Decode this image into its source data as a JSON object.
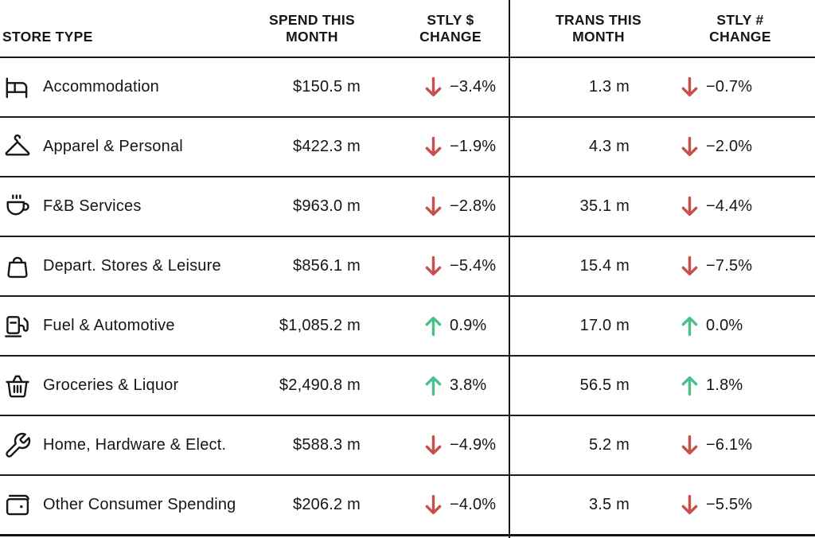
{
  "colors": {
    "text": "#161616",
    "border": "#1c1c1c",
    "negative": "#c7504c",
    "positive": "#4cbf8b",
    "background": "#ffffff"
  },
  "header": {
    "store_type": "STORE TYPE",
    "spend_this_month": "SPEND THIS\nMONTH",
    "stly_dollar_change": "STLY $\nCHANGE",
    "trans_this_month": "TRANS THIS\nMONTH",
    "stly_num_change": "STLY #\nCHANGE"
  },
  "chart_data": {
    "type": "table",
    "columns": [
      "STORE TYPE",
      "SPEND THIS MONTH",
      "STLY $ CHANGE",
      "TRANS THIS MONTH",
      "STLY # CHANGE"
    ],
    "rows": [
      {
        "icon": "bed-icon",
        "store_type": "Accommodation",
        "spend": "$150.5 m",
        "spend_change": "−3.4%",
        "spend_trend": "down",
        "trans": "1.3 m",
        "trans_change": "−0.7%",
        "trans_trend": "down"
      },
      {
        "icon": "hanger-icon",
        "store_type": "Apparel & Personal",
        "spend": "$422.3 m",
        "spend_change": "−1.9%",
        "spend_trend": "down",
        "trans": "4.3 m",
        "trans_change": "−2.0%",
        "trans_trend": "down"
      },
      {
        "icon": "coffee-cup-icon",
        "store_type": "F&B Services",
        "spend": "$963.0 m",
        "spend_change": "−2.8%",
        "spend_trend": "down",
        "trans": "35.1 m",
        "trans_change": "−4.4%",
        "trans_trend": "down"
      },
      {
        "icon": "shopping-bag-icon",
        "store_type": "Depart. Stores & Leisure",
        "spend": "$856.1 m",
        "spend_change": "−5.4%",
        "spend_trend": "down",
        "trans": "15.4 m",
        "trans_change": "−7.5%",
        "trans_trend": "down"
      },
      {
        "icon": "fuel-pump-icon",
        "store_type": "Fuel & Automotive",
        "spend": "$1,085.2 m",
        "spend_change": "0.9%",
        "spend_trend": "up",
        "trans": "17.0 m",
        "trans_change": "0.0%",
        "trans_trend": "up"
      },
      {
        "icon": "basket-icon",
        "store_type": "Groceries & Liquor",
        "spend": "$2,490.8 m",
        "spend_change": "3.8%",
        "spend_trend": "up",
        "trans": "56.5 m",
        "trans_change": "1.8%",
        "trans_trend": "up"
      },
      {
        "icon": "wrench-icon",
        "store_type": "Home, Hardware & Elect.",
        "spend": "$588.3 m",
        "spend_change": "−4.9%",
        "spend_trend": "down",
        "trans": "5.2 m",
        "trans_change": "−6.1%",
        "trans_trend": "down"
      },
      {
        "icon": "wallet-icon",
        "store_type": "Other Consumer Spending",
        "spend": "$206.2 m",
        "spend_change": "−4.0%",
        "spend_trend": "down",
        "trans": "3.5 m",
        "trans_change": "−5.5%",
        "trans_trend": "down"
      }
    ]
  }
}
